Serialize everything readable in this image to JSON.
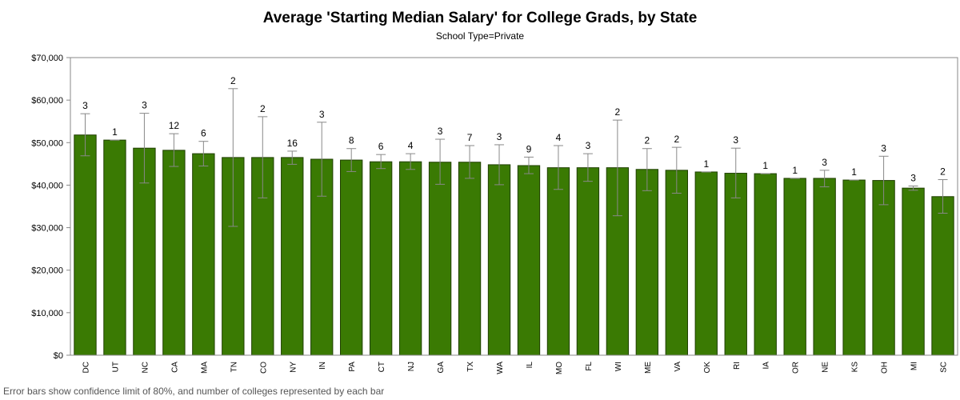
{
  "chart_data": {
    "type": "bar",
    "title": "Average 'Starting Median Salary' for College Grads, by State",
    "subtitle": "School Type=Private",
    "footnote": "Error bars show confidence limit of 80%, and number of colleges represented by each bar",
    "xlabel": "",
    "ylabel": "",
    "ylim": [
      0,
      70000
    ],
    "yticks": [
      0,
      10000,
      20000,
      30000,
      40000,
      50000,
      60000,
      70000
    ],
    "ytick_labels": [
      "$0",
      "$10,000",
      "$20,000",
      "$30,000",
      "$40,000",
      "$50,000",
      "$60,000",
      "$70,000"
    ],
    "grid": false,
    "categories": [
      "DC",
      "UT",
      "NC",
      "CA",
      "MA",
      "TN",
      "CO",
      "NY",
      "IN",
      "PA",
      "CT",
      "NJ",
      "GA",
      "TX",
      "WA",
      "IL",
      "MO",
      "FL",
      "WI",
      "ME",
      "VA",
      "OK",
      "RI",
      "IA",
      "OR",
      "NE",
      "KS",
      "OH",
      "MI",
      "SC"
    ],
    "values": [
      51800,
      50600,
      48700,
      48200,
      47400,
      46500,
      46500,
      46500,
      46100,
      45900,
      45500,
      45500,
      45400,
      45400,
      44800,
      44600,
      44100,
      44100,
      44100,
      43700,
      43500,
      43100,
      42800,
      42700,
      41600,
      41600,
      41200,
      41100,
      39300,
      37300
    ],
    "error_low": [
      46900,
      50600,
      40500,
      44400,
      44500,
      30300,
      37000,
      44900,
      37400,
      43200,
      43900,
      43700,
      40200,
      41600,
      40100,
      42700,
      39000,
      40900,
      32800,
      38700,
      38100,
      43100,
      37000,
      42700,
      41600,
      39600,
      41200,
      35400,
      38800,
      33400
    ],
    "error_high": [
      56800,
      50600,
      56900,
      52100,
      50300,
      62700,
      56100,
      48000,
      54800,
      48600,
      47200,
      47400,
      50800,
      49300,
      49500,
      46600,
      49300,
      47400,
      55300,
      48600,
      48900,
      43100,
      48700,
      42700,
      41600,
      43500,
      41200,
      46800,
      39800,
      41300
    ],
    "counts": [
      "3",
      "1",
      "3",
      "12",
      "6",
      "2",
      "2",
      "16",
      "3",
      "8",
      "6",
      "4",
      "3",
      "7",
      "3",
      "9",
      "4",
      "3",
      "2",
      "2",
      "2",
      "1",
      "3",
      "1",
      "1",
      "3",
      "1",
      "3",
      "3",
      "2"
    ],
    "colors": {
      "bar_fill": "#3a7a03",
      "bar_stroke": "#1f3f00",
      "error_bar": "#888888",
      "axis": "#888888"
    }
  }
}
